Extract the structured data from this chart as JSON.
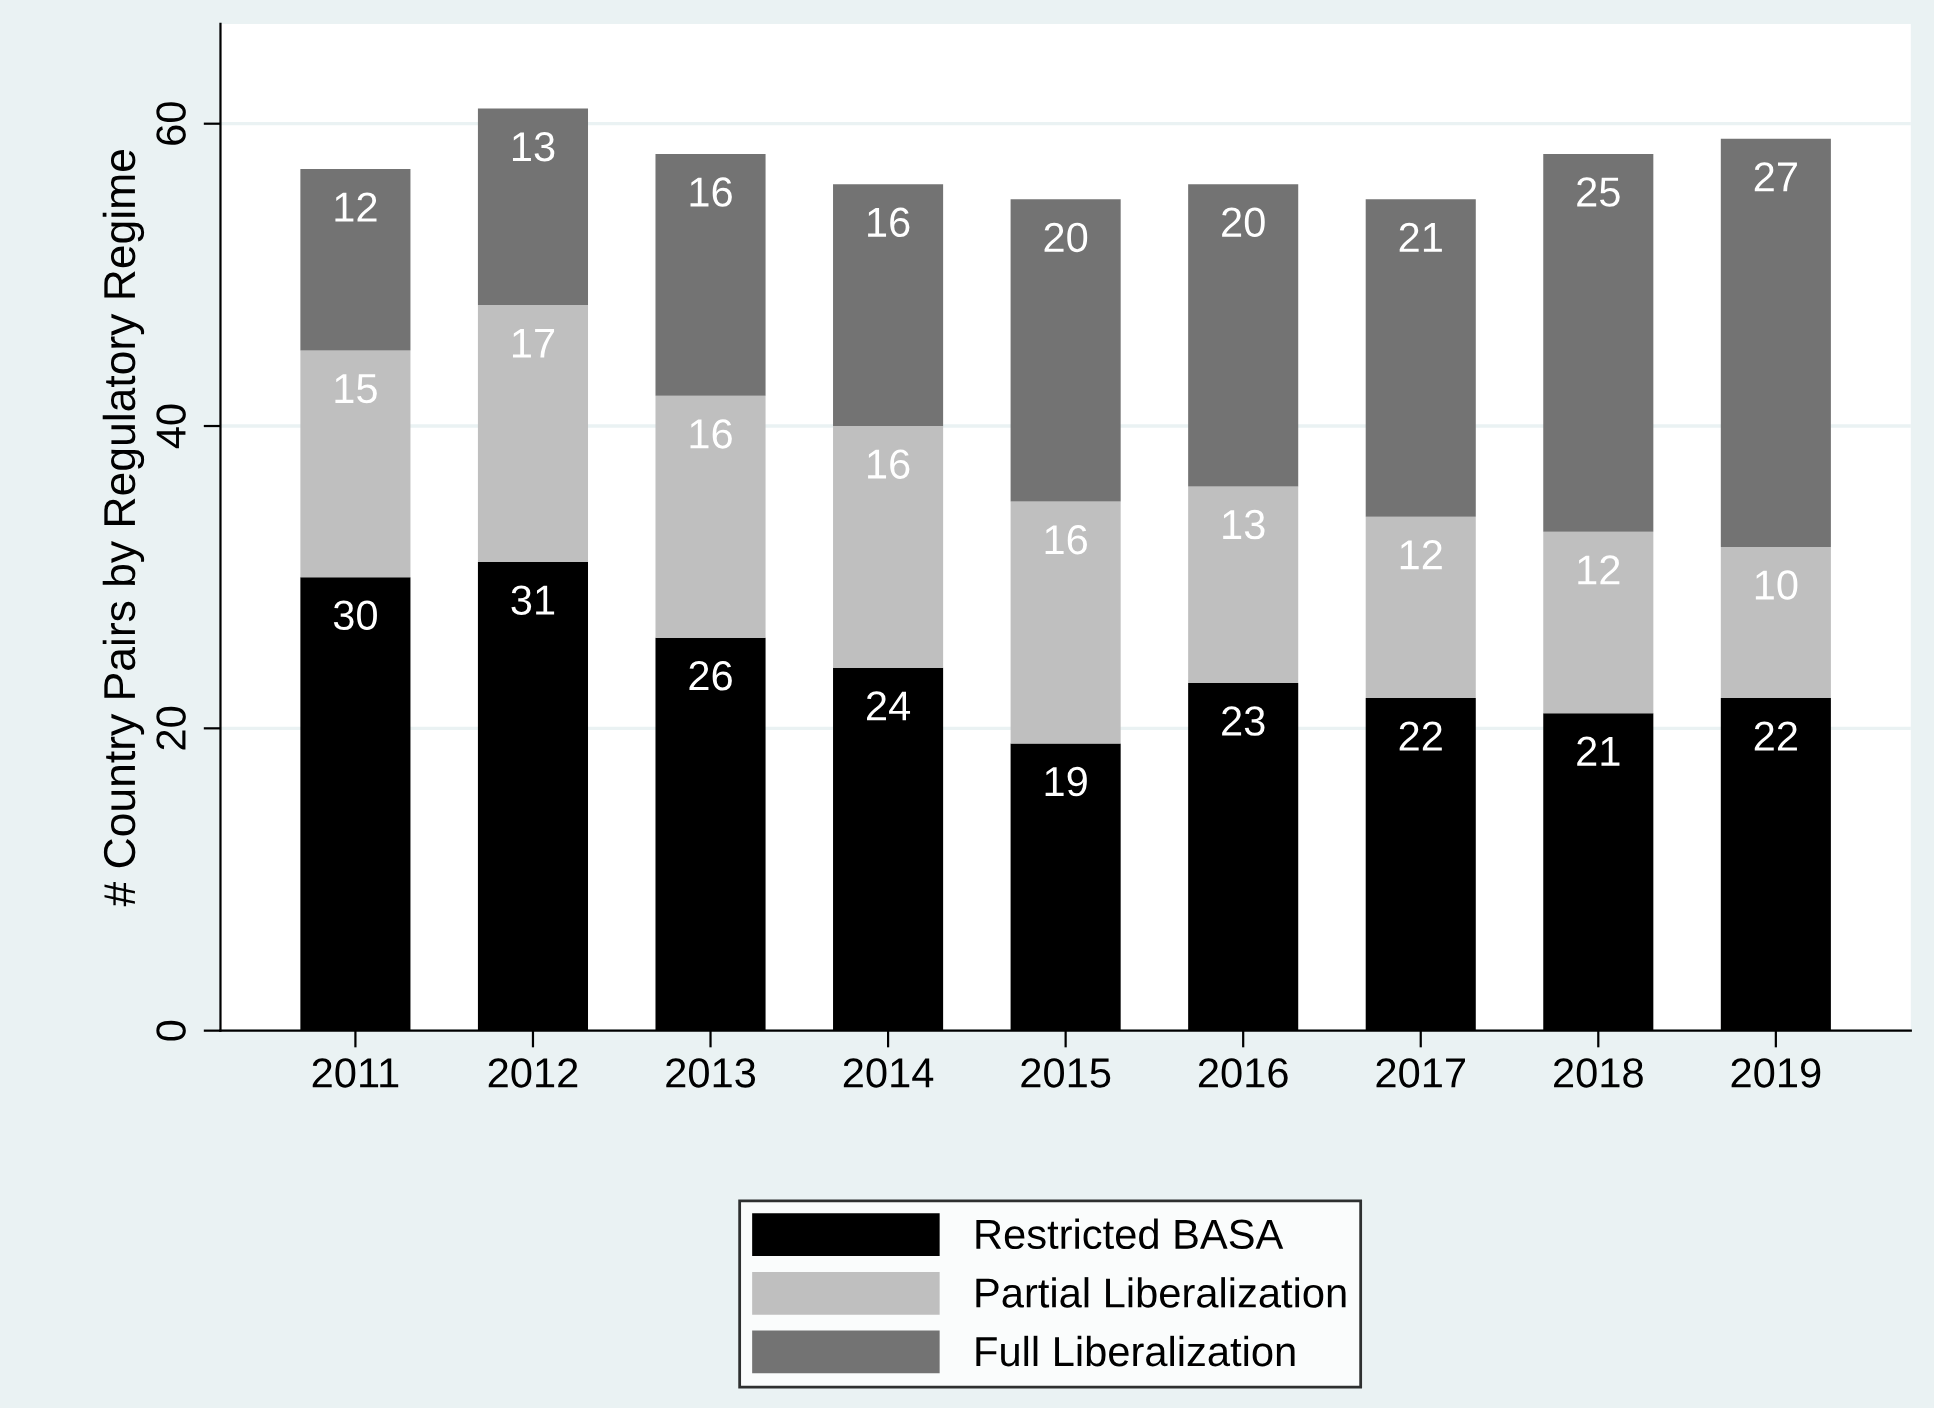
{
  "chart_data": {
    "type": "bar",
    "stacked": true,
    "ylabel": "# Country Pairs by Regulatory Regime",
    "categories": [
      "2011",
      "2012",
      "2013",
      "2014",
      "2015",
      "2016",
      "2017",
      "2018",
      "2019"
    ],
    "series": [
      {
        "name": "Restricted BASA",
        "color": "#000000",
        "values": [
          30,
          31,
          26,
          24,
          19,
          23,
          22,
          21,
          22
        ]
      },
      {
        "name": "Partial Liberalization",
        "color": "#bfbfbf",
        "values": [
          15,
          17,
          16,
          16,
          16,
          13,
          12,
          12,
          10
        ]
      },
      {
        "name": "Full Liberalization",
        "color": "#737373",
        "values": [
          12,
          13,
          16,
          16,
          20,
          20,
          21,
          25,
          27
        ]
      }
    ],
    "ylim": [
      0,
      66.6
    ],
    "yticks": [
      0,
      20,
      40,
      60
    ],
    "grid": "y",
    "legend": "bottom",
    "data_labels": true
  }
}
